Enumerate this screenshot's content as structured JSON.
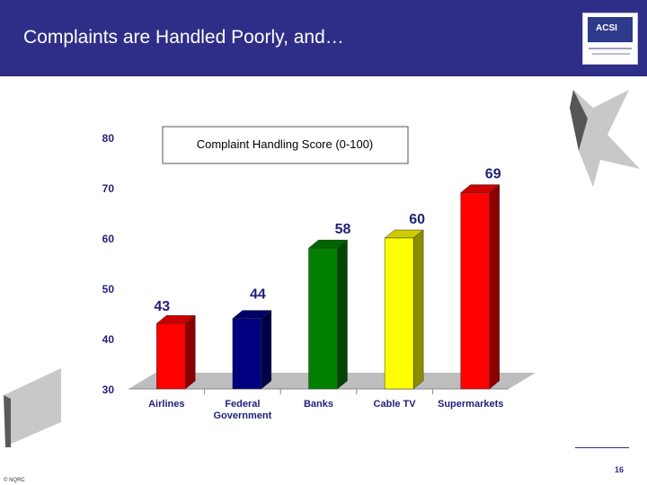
{
  "header": {
    "title": "Complaints are Handled Poorly, and…",
    "logo_text": "ACSI"
  },
  "footer": {
    "copyright": "© NQRC",
    "page_number": "16"
  },
  "chart_data": {
    "type": "bar",
    "title": "Complaint Handling Score (0-100)",
    "categories": [
      "Airlines",
      "Federal\nGovernment",
      "Banks",
      "Cable TV",
      "Supermarkets"
    ],
    "values": [
      43,
      44,
      58,
      60,
      69
    ],
    "colors": [
      "#ff0000",
      "#000080",
      "#008000",
      "#ffff00",
      "#ff0000"
    ],
    "ylim": [
      30,
      80
    ],
    "yticks": [
      30,
      40,
      50,
      60,
      70,
      80
    ],
    "xlabel": "",
    "ylabel": "",
    "label_color": "#1f1f7a"
  }
}
